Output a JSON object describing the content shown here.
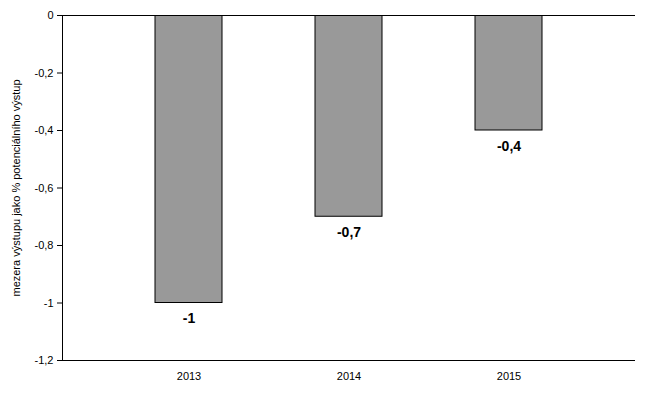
{
  "chart_data": {
    "type": "bar",
    "y_label": "mezera výstupu jako % potenciálního výstup",
    "categories": [
      "2013",
      "2014",
      "2015"
    ],
    "values": [
      -1,
      -0.7,
      -0.4
    ],
    "value_labels": [
      "-1",
      "-0,7",
      "-0,4"
    ],
    "data_labels": true,
    "color": "#999999",
    "ylim": [
      -1.2,
      0
    ],
    "yticks": [
      0,
      {
        "value": -0.2,
        "label": "-0,2"
      },
      {
        "value": -0.4,
        "label": "-0,4"
      },
      {
        "value": -0.6,
        "label": "-0,6"
      },
      {
        "value": -0.8,
        "label": "-0,8"
      },
      -1,
      {
        "value": -1.2,
        "label": "-1,2"
      }
    ],
    "grid": false
  }
}
